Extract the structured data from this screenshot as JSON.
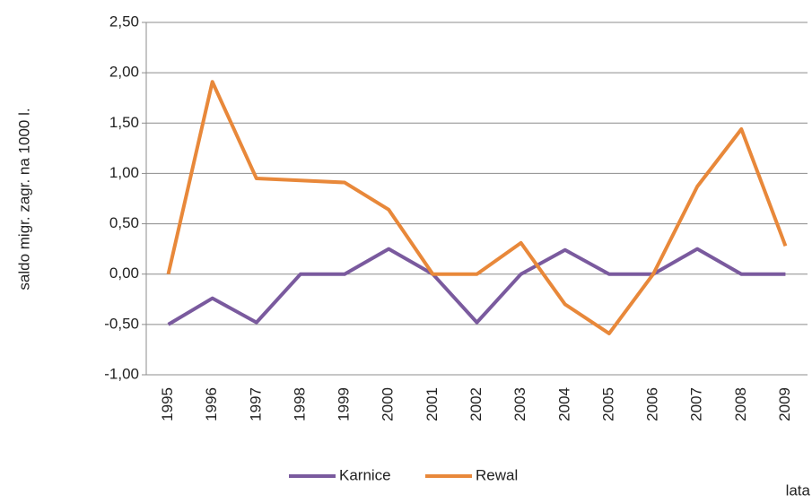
{
  "chart_data": {
    "type": "line",
    "y_label": "saldo migr. zagr. na 1000 l.",
    "x_label": "lata",
    "categories": [
      "1995",
      "1996",
      "1997",
      "1998",
      "1999",
      "2000",
      "2001",
      "2002",
      "2003",
      "2004",
      "2005",
      "2006",
      "2007",
      "2008",
      "2009"
    ],
    "series": [
      {
        "name": "Karnice",
        "color": "#7a5a9e",
        "values": [
          -0.5,
          -0.24,
          -0.48,
          0,
          0,
          0.25,
          0,
          -0.48,
          0,
          0.24,
          0,
          0,
          0.25,
          0,
          0
        ]
      },
      {
        "name": "Rewal",
        "color": "#e8883a",
        "values": [
          0,
          1.91,
          0.95,
          0.93,
          0.91,
          0.64,
          0,
          0,
          0.31,
          -0.3,
          -0.59,
          0,
          0.87,
          1.44,
          0.28
        ]
      }
    ],
    "ylim": [
      -1.0,
      2.5
    ],
    "yticks": [
      {
        "value": -1.0,
        "label": "-1,00"
      },
      {
        "value": -0.5,
        "label": "-0,50"
      },
      {
        "value": 0,
        "label": "0,00"
      },
      {
        "value": 0.5,
        "label": "0,50"
      },
      {
        "value": 1.0,
        "label": "1,00"
      },
      {
        "value": 1.5,
        "label": "1,50"
      },
      {
        "value": 2.0,
        "label": "2,00"
      },
      {
        "value": 2.5,
        "label": "2,50"
      }
    ],
    "grid": true
  }
}
